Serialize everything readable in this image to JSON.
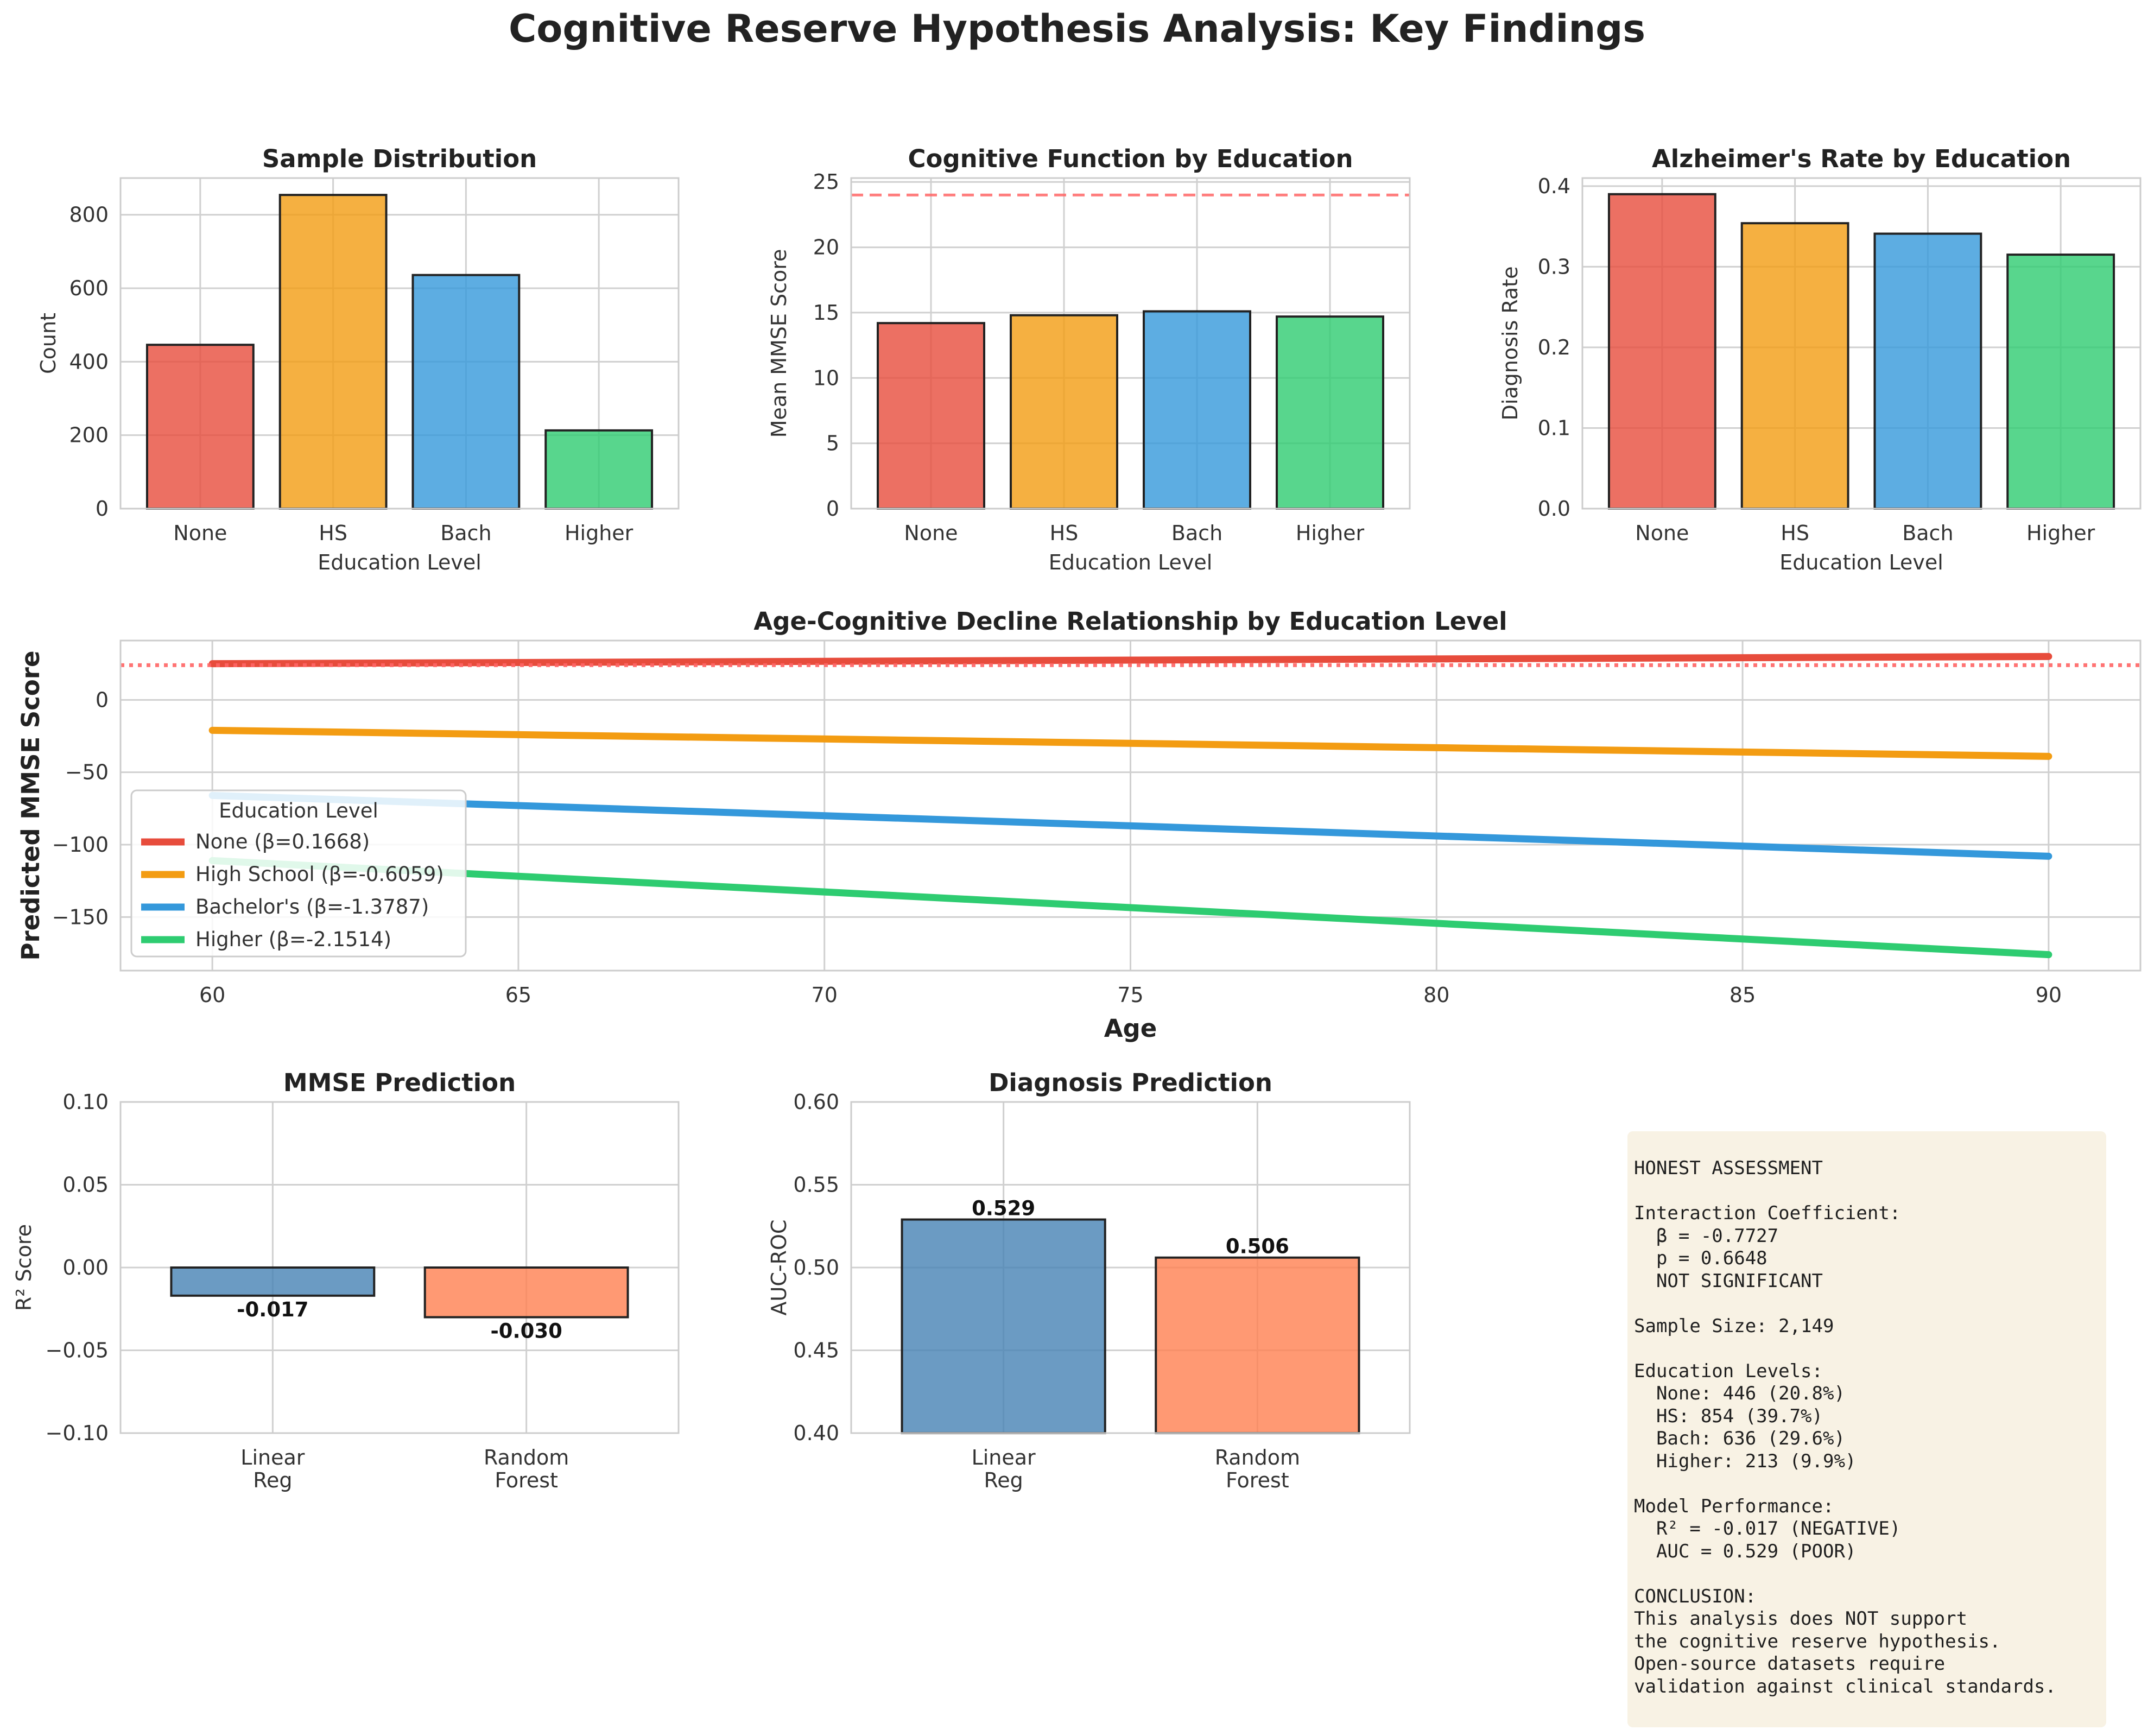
{
  "figure": {
    "title": "Cognitive Reserve Hypothesis Analysis: Key Findings",
    "colors": {
      "none": "#e74c3c",
      "hs": "#f39c12",
      "bach": "#3498db",
      "higher": "#2ecc71",
      "model_linear": "#4682b4",
      "model_rf": "#ff7f50",
      "threshold": "#ff6666"
    }
  },
  "chart_data": [
    {
      "type": "bar",
      "title": "Sample Distribution",
      "xlabel": "Education Level",
      "ylabel": "Count",
      "categories": [
        "None",
        "HS",
        "Bach",
        "Higher"
      ],
      "values": [
        446,
        854,
        636,
        213
      ],
      "ylim": [
        0,
        900
      ],
      "yticks": [
        0,
        200,
        400,
        600,
        800
      ],
      "ytick_labels": [
        "0",
        "200",
        "400",
        "600",
        "800"
      ],
      "grid": true
    },
    {
      "type": "bar",
      "title": "Cognitive Function by Education",
      "xlabel": "Education Level",
      "ylabel": "Mean MMSE Score",
      "categories": [
        "None",
        "HS",
        "Bach",
        "Higher"
      ],
      "values": [
        14.2,
        14.8,
        15.1,
        14.7
      ],
      "ylim": [
        0,
        25.3
      ],
      "yticks": [
        0,
        5,
        10,
        15,
        20,
        25
      ],
      "ytick_labels": [
        "0",
        "5",
        "10",
        "15",
        "20",
        "25"
      ],
      "reference_line": {
        "y": 24,
        "style": "dashed"
      },
      "grid": true
    },
    {
      "type": "bar",
      "title": "Alzheimer's Rate by Education",
      "xlabel": "Education Level",
      "ylabel": "Diagnosis Rate",
      "categories": [
        "None",
        "HS",
        "Bach",
        "Higher"
      ],
      "values": [
        0.39,
        0.354,
        0.341,
        0.315
      ],
      "ylim": [
        0,
        0.41
      ],
      "yticks": [
        0,
        0.1,
        0.2,
        0.3,
        0.4
      ],
      "ytick_labels": [
        "0.0",
        "0.1",
        "0.2",
        "0.3",
        "0.4"
      ],
      "grid": true
    },
    {
      "type": "line",
      "title": "Age-Cognitive Decline Relationship by Education Level",
      "xlabel": "Age",
      "ylabel": "Predicted MMSE Score",
      "xlim": [
        58.5,
        91.5
      ],
      "ylim": [
        -187,
        41
      ],
      "xticks": [
        60,
        65,
        70,
        75,
        80,
        85,
        90
      ],
      "xtick_labels": [
        "60",
        "65",
        "70",
        "75",
        "80",
        "85",
        "90"
      ],
      "yticks": [
        0,
        -50,
        -100,
        -150
      ],
      "ytick_labels": [
        "0",
        "−50",
        "−100",
        "−150"
      ],
      "reference_line": {
        "y": 24,
        "style": "dotted"
      },
      "legend": {
        "title": "Education Level",
        "placement": "lower-left"
      },
      "series": [
        {
          "name": "None (β=0.1668)",
          "x": [
            60,
            90
          ],
          "y": [
            25,
            30
          ]
        },
        {
          "name": "High School (β=-0.6059)",
          "x": [
            60,
            90
          ],
          "y": [
            -21,
            -39
          ]
        },
        {
          "name": "Bachelor's (β=-1.3787)",
          "x": [
            60,
            90
          ],
          "y": [
            -66,
            -108
          ]
        },
        {
          "name": "Higher (β=-2.1514)",
          "x": [
            60,
            90
          ],
          "y": [
            -111,
            -176
          ]
        }
      ],
      "grid": true
    },
    {
      "type": "bar",
      "title": "MMSE Prediction",
      "xlabel": "",
      "ylabel": "R² Score",
      "categories": [
        "Linear\nReg",
        "Random\nForest"
      ],
      "values": [
        -0.017,
        -0.03
      ],
      "data_labels": [
        "-0.017",
        "-0.030"
      ],
      "ylim": [
        -0.1,
        0.1
      ],
      "yticks": [
        -0.1,
        -0.05,
        0,
        0.05,
        0.1
      ],
      "ytick_labels": [
        "−0.10",
        "−0.05",
        "0.00",
        "0.05",
        "0.10"
      ],
      "grid": true
    },
    {
      "type": "bar",
      "title": "Diagnosis Prediction",
      "xlabel": "",
      "ylabel": "AUC-ROC",
      "categories": [
        "Linear\nReg",
        "Random\nForest"
      ],
      "values": [
        0.529,
        0.506
      ],
      "data_labels": [
        "0.529",
        "0.506"
      ],
      "ylim": [
        0.4,
        0.6
      ],
      "yticks": [
        0.4,
        0.45,
        0.5,
        0.55,
        0.6
      ],
      "ytick_labels": [
        "0.40",
        "0.45",
        "0.50",
        "0.55",
        "0.60"
      ],
      "grid": true
    }
  ],
  "summary": {
    "lines": [
      "HONEST ASSESSMENT",
      "",
      "Interaction Coefficient:",
      "  β = -0.7727",
      "  p = 0.6648",
      "  NOT SIGNIFICANT",
      "",
      "Sample Size: 2,149",
      "",
      "Education Levels:",
      "  None: 446 (20.8%)",
      "  HS: 854 (39.7%)",
      "  Bach: 636 (29.6%)",
      "  Higher: 213 (9.9%)",
      "",
      "Model Performance:",
      "  R² = -0.017 (NEGATIVE)",
      "  AUC = 0.529 (POOR)",
      "",
      "CONCLUSION:",
      "This analysis does NOT support",
      "the cognitive reserve hypothesis.",
      "Open-source datasets require",
      "validation against clinical standards."
    ]
  }
}
